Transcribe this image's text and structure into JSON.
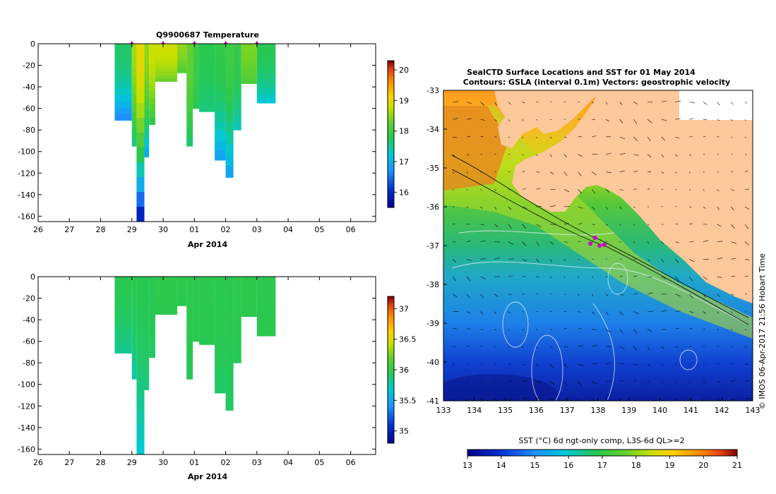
{
  "chart_data": [
    {
      "type": "heatmap",
      "title": "Q9900687  Temperature",
      "xlabel": "Apr 2014",
      "ylabel": "",
      "x_ticks": [
        "26",
        "27",
        "28",
        "29",
        "30",
        "01",
        "02",
        "03",
        "04",
        "05",
        "06"
      ],
      "y_ticks": [
        "0",
        "-20",
        "-40",
        "-60",
        "-80",
        "-100",
        "-120",
        "-140",
        "-160"
      ],
      "ylim": [
        -165,
        0
      ],
      "colorbar": {
        "ticks": [
          "20",
          "19",
          "18",
          "17",
          "16"
        ],
        "range": [
          15.5,
          20.3
        ]
      },
      "markers_day": [
        29.0,
        30.0,
        31.0,
        32.0,
        33.0
      ],
      "profiles": [
        {
          "start": 28.45,
          "end": 29.0,
          "depth": 71,
          "t_surface": 17.7,
          "t_bottom": 16.6
        },
        {
          "start": 29.0,
          "end": 29.15,
          "depth": 95,
          "t_surface": 18.6,
          "t_bottom": 17.5
        },
        {
          "start": 29.15,
          "end": 29.4,
          "depth": 165,
          "t_surface": 19.0,
          "t_bottom": 15.6
        },
        {
          "start": 29.4,
          "end": 29.55,
          "depth": 105,
          "t_surface": 18.5,
          "t_bottom": 16.8
        },
        {
          "start": 29.55,
          "end": 29.75,
          "depth": 75,
          "t_surface": 18.8,
          "t_bottom": 17.8
        },
        {
          "start": 29.75,
          "end": 30.45,
          "depth": 35,
          "t_surface": 18.8,
          "t_bottom": 18.3
        },
        {
          "start": 30.45,
          "end": 30.75,
          "depth": 27,
          "t_surface": 18.5,
          "t_bottom": 18.1
        },
        {
          "start": 30.75,
          "end": 30.95,
          "depth": 95,
          "t_surface": 18.3,
          "t_bottom": 17.6
        },
        {
          "start": 30.95,
          "end": 31.15,
          "depth": 60,
          "t_surface": 18.0,
          "t_bottom": 17.8
        },
        {
          "start": 31.15,
          "end": 31.65,
          "depth": 63,
          "t_surface": 17.8,
          "t_bottom": 17.6
        },
        {
          "start": 31.65,
          "end": 32.0,
          "depth": 108,
          "t_surface": 17.9,
          "t_bottom": 16.8
        },
        {
          "start": 32.0,
          "end": 32.25,
          "depth": 124,
          "t_surface": 18.0,
          "t_bottom": 16.8
        },
        {
          "start": 32.25,
          "end": 32.5,
          "depth": 80,
          "t_surface": 17.9,
          "t_bottom": 17.3
        },
        {
          "start": 32.5,
          "end": 33.0,
          "depth": 37,
          "t_surface": 18.4,
          "t_bottom": 18.1
        },
        {
          "start": 33.0,
          "end": 33.6,
          "depth": 55,
          "t_surface": 17.8,
          "t_bottom": 17.2
        }
      ]
    },
    {
      "type": "heatmap",
      "title": "",
      "xlabel": "Apr 2014",
      "ylabel": "",
      "x_ticks": [
        "26",
        "27",
        "28",
        "29",
        "30",
        "01",
        "02",
        "03",
        "04",
        "05",
        "06"
      ],
      "y_ticks": [
        "0",
        "-20",
        "-40",
        "-60",
        "-80",
        "-100",
        "-120",
        "-140",
        "-160"
      ],
      "ylim": [
        -165,
        0
      ],
      "colorbar": {
        "ticks": [
          "37",
          "36.5",
          "36",
          "35.5",
          "35"
        ],
        "range": [
          34.8,
          37.2
        ]
      },
      "profiles": [
        {
          "start": 28.45,
          "end": 29.0,
          "depth": 71,
          "s_surface": 35.95,
          "s_bottom": 35.8
        },
        {
          "start": 29.0,
          "end": 29.15,
          "depth": 95,
          "s_surface": 35.95,
          "s_bottom": 35.75
        },
        {
          "start": 29.15,
          "end": 29.4,
          "depth": 165,
          "s_surface": 35.95,
          "s_bottom": 35.65
        },
        {
          "start": 29.4,
          "end": 29.55,
          "depth": 105,
          "s_surface": 35.95,
          "s_bottom": 35.85
        },
        {
          "start": 29.55,
          "end": 29.75,
          "depth": 75,
          "s_surface": 35.95,
          "s_bottom": 35.9
        },
        {
          "start": 29.75,
          "end": 30.45,
          "depth": 35,
          "s_surface": 35.98,
          "s_bottom": 35.95
        },
        {
          "start": 30.45,
          "end": 30.75,
          "depth": 27,
          "s_surface": 35.98,
          "s_bottom": 35.95
        },
        {
          "start": 30.75,
          "end": 30.95,
          "depth": 95,
          "s_surface": 35.97,
          "s_bottom": 35.93
        },
        {
          "start": 30.95,
          "end": 31.15,
          "depth": 60,
          "s_surface": 35.97,
          "s_bottom": 35.95
        },
        {
          "start": 31.15,
          "end": 31.65,
          "depth": 63,
          "s_surface": 35.97,
          "s_bottom": 35.95
        },
        {
          "start": 31.65,
          "end": 32.0,
          "depth": 108,
          "s_surface": 35.96,
          "s_bottom": 35.9
        },
        {
          "start": 32.0,
          "end": 32.25,
          "depth": 124,
          "s_surface": 35.96,
          "s_bottom": 35.9
        },
        {
          "start": 32.25,
          "end": 32.5,
          "depth": 80,
          "s_surface": 35.97,
          "s_bottom": 35.93
        },
        {
          "start": 32.5,
          "end": 33.0,
          "depth": 37,
          "s_surface": 35.98,
          "s_bottom": 35.96
        },
        {
          "start": 33.0,
          "end": 33.6,
          "depth": 55,
          "s_surface": 35.97,
          "s_bottom": 35.95
        }
      ]
    },
    {
      "type": "heatmap",
      "title": "SealCTD Surface Locations and SST for 01 May 2014",
      "subtitle": "Contours: GSLA (interval 0.1m) Vectors: geostrophic velocity",
      "xlabel": "",
      "ylabel": "",
      "x_ticks": [
        "133",
        "134",
        "135",
        "136",
        "137",
        "138",
        "139",
        "140",
        "141",
        "142",
        "143"
      ],
      "y_ticks": [
        "-33",
        "-34",
        "-35",
        "-36",
        "-37",
        "-38",
        "-39",
        "-40",
        "-41"
      ],
      "xlim": [
        133,
        143
      ],
      "ylim": [
        -41,
        -33
      ],
      "colorbar_label": "SST (°C) 6d ngt-only comp, L3S-6d QL>=2",
      "colorbar_ticks": [
        "13",
        "14",
        "15",
        "16",
        "17",
        "18",
        "19",
        "20",
        "21"
      ],
      "seal_locations": [
        [
          137.75,
          -36.95
        ],
        [
          138.05,
          -37.0
        ],
        [
          138.2,
          -36.98
        ],
        [
          137.9,
          -36.8
        ]
      ],
      "credit": "© IMOS 06-Apr-2017 21:56 Hobart Time"
    }
  ]
}
